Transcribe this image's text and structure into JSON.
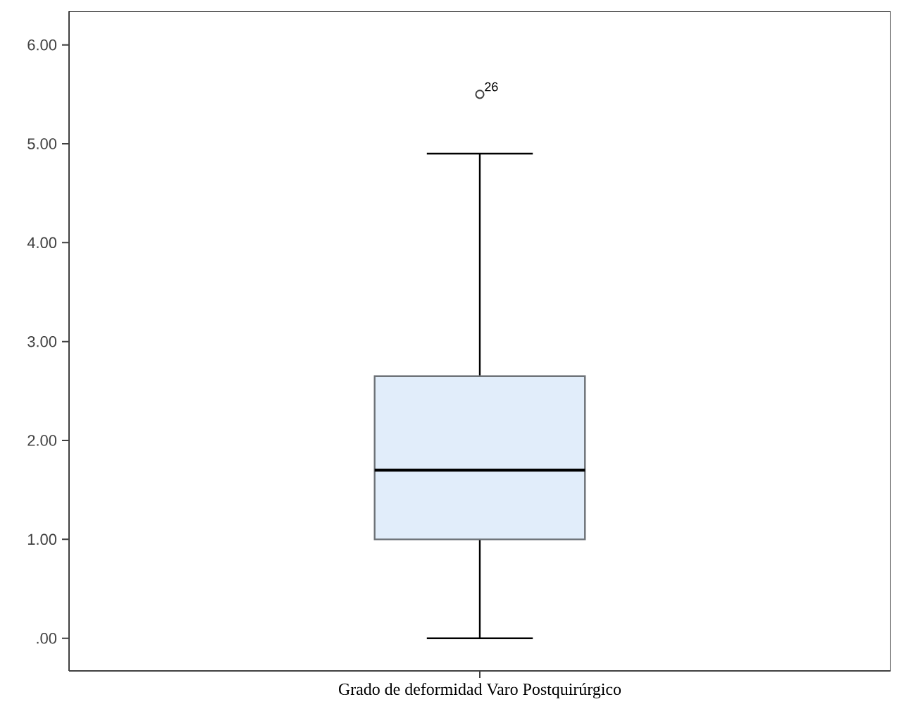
{
  "chart_data": {
    "type": "box",
    "categories": [
      "Grado de deformidad Varo Postquirúrgico"
    ],
    "boxes": [
      {
        "low": 0,
        "q1": 1.0,
        "median": 1.7,
        "q3": 2.65,
        "high": 4.9,
        "outliers": [
          5.5
        ]
      }
    ],
    "color": "#e1edfa",
    "marker": "circle",
    "ylim": [
      -0.33,
      6.34
    ],
    "yticks": [
      {
        "value": 0,
        "label": ".00"
      },
      {
        "value": 1,
        "label": "1.00"
      },
      {
        "value": 2,
        "label": "2.00"
      },
      {
        "value": 3,
        "label": "3.00"
      },
      {
        "value": 4,
        "label": "4.00"
      },
      {
        "value": 5,
        "label": "5.00"
      },
      {
        "value": 6,
        "label": "6.00"
      }
    ],
    "annotations": [
      "26"
    ]
  }
}
